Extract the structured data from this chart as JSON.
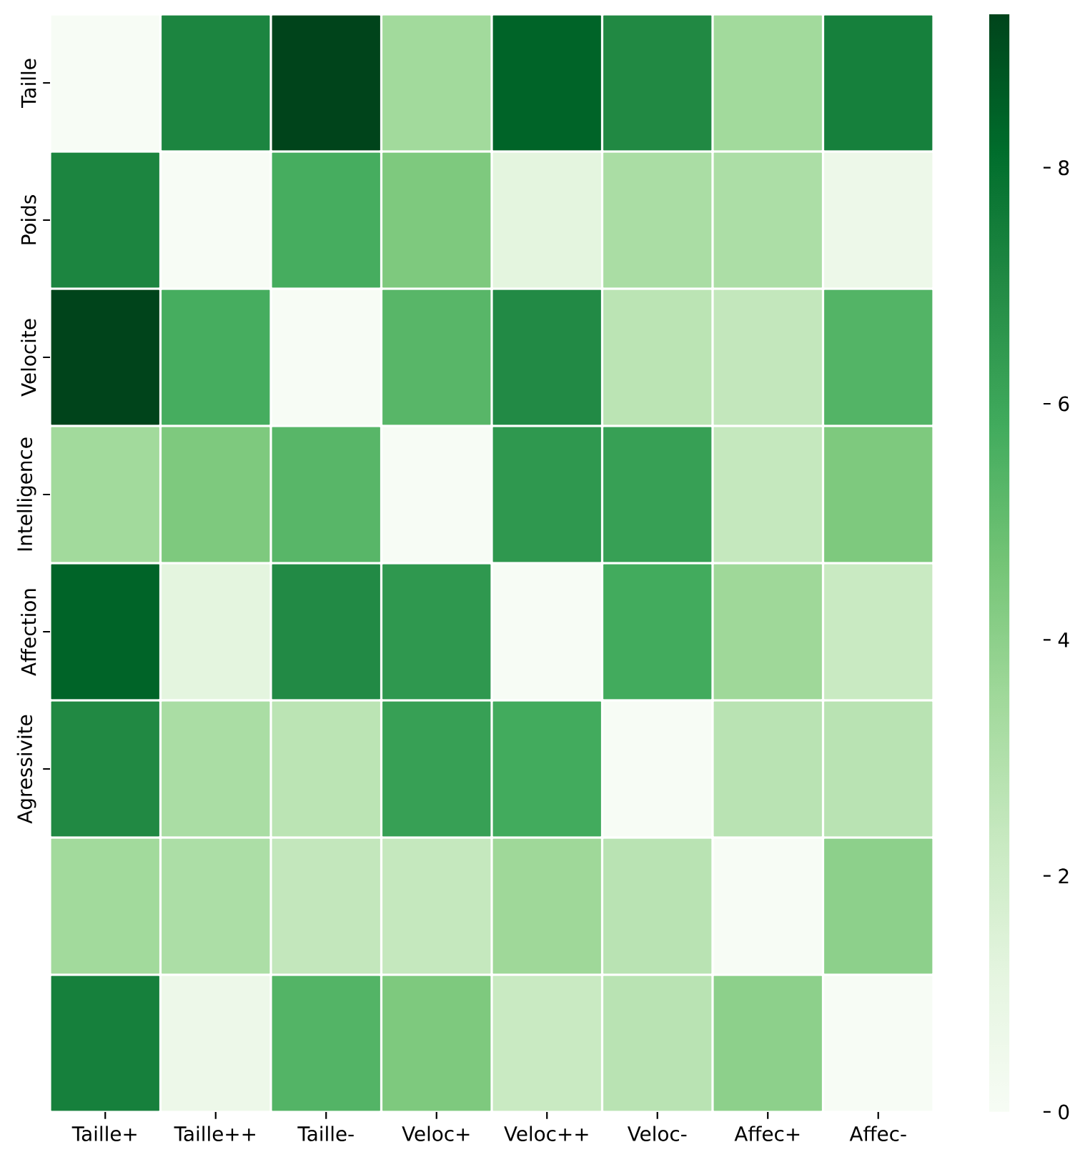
{
  "chart_data": {
    "type": "heatmap",
    "categories": [
      "Taille+",
      "Taille++",
      "Taille-",
      "Veloc+",
      "Veloc++",
      "Veloc-",
      "Affec+",
      "Affec-"
    ],
    "y_categories": [
      "Taille",
      "Poids",
      "Velocite",
      "Intelligence",
      "Affection",
      "Agressivite",
      null,
      null
    ],
    "cells": [
      [
        0,
        7.2,
        9.3,
        3.45,
        8.4,
        7.05,
        3.45,
        7.4
      ],
      [
        7.2,
        0,
        5.7,
        4.4,
        1.2,
        3.2,
        3.15,
        0.65
      ],
      [
        9.3,
        5.7,
        0,
        5.3,
        7.0,
        2.7,
        2.45,
        5.4
      ],
      [
        3.45,
        4.4,
        5.3,
        0,
        6.5,
        6.2,
        2.4,
        4.4
      ],
      [
        8.4,
        1.2,
        7.0,
        6.5,
        0,
        5.8,
        3.55,
        2.25
      ],
      [
        7.05,
        3.2,
        2.7,
        6.2,
        5.8,
        0,
        2.75,
        2.75
      ],
      [
        3.45,
        3.15,
        2.45,
        2.4,
        3.55,
        2.75,
        0,
        4.0
      ],
      [
        7.4,
        0.65,
        5.4,
        4.4,
        2.25,
        2.75,
        4.0,
        0
      ]
    ],
    "clim": [
      0,
      9.3
    ],
    "cticks": [
      0,
      2,
      4,
      6,
      8
    ]
  }
}
